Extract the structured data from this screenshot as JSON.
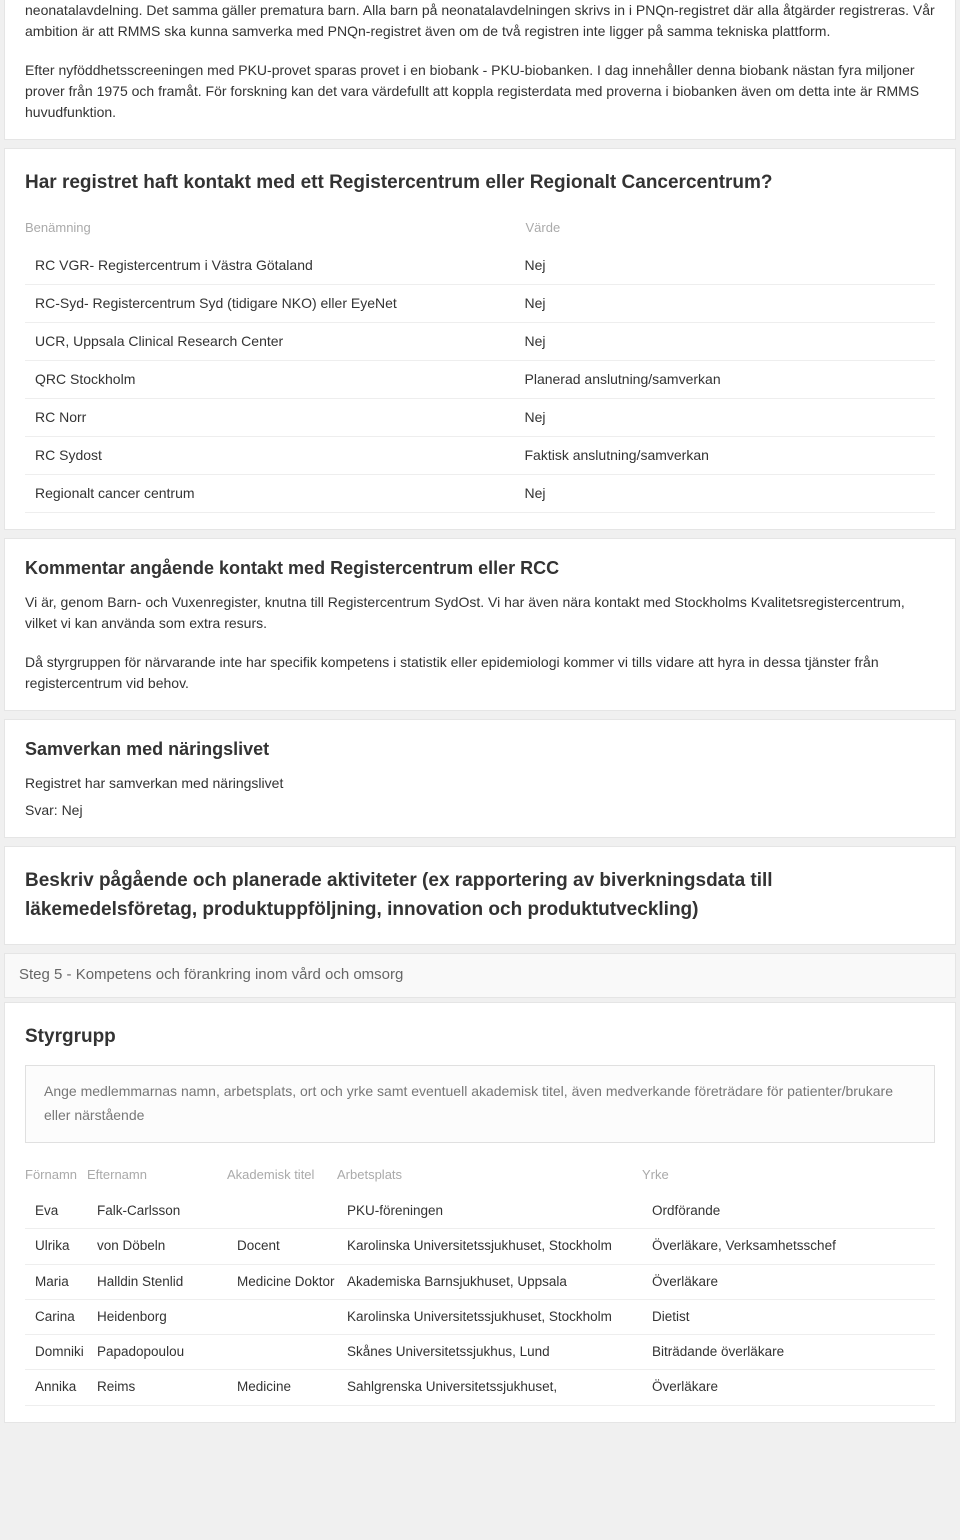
{
  "intro": {
    "p1": "neonatalavdelning. Det samma gäller prematura barn. Alla barn på neonatalavdelningen skrivs in i PNQn-registret där alla åtgärder registreras. Vår ambition är att RMMS ska kunna samverka med PNQn-registret även om de två registren inte ligger på samma tekniska plattform.",
    "p2": "Efter nyföddhetsscreeningen med PKU-provet sparas provet i en biobank - PKU-biobanken. I dag innehåller denna biobank nästan fyra miljoner prover från 1975 och framåt. För forskning kan det vara värdefullt att koppla registerdata med proverna i biobanken även om detta inte är RMMS huvudfunktion."
  },
  "contact_section": {
    "title": "Har registret haft kontakt med ett Registercentrum eller Regionalt Cancercentrum?",
    "col_name": "Benämning",
    "col_value": "Värde",
    "rows": [
      {
        "name": "RC VGR- Registercentrum i Västra Götaland",
        "value": "Nej"
      },
      {
        "name": "RC-Syd- Registercentrum Syd (tidigare NKO) eller EyeNet",
        "value": "Nej"
      },
      {
        "name": "UCR, Uppsala Clinical Research Center",
        "value": "Nej"
      },
      {
        "name": "QRC Stockholm",
        "value": "Planerad anslutning/samverkan"
      },
      {
        "name": "RC Norr",
        "value": "Nej"
      },
      {
        "name": "RC Sydost",
        "value": "Faktisk anslutning/samverkan"
      },
      {
        "name": "Regionalt cancer centrum",
        "value": "Nej"
      }
    ]
  },
  "comment_section": {
    "title": "Kommentar angående kontakt med Registercentrum eller RCC",
    "p1": "Vi är, genom Barn- och Vuxenregister, knutna till Registercentrum SydOst. Vi har även nära kontakt med Stockholms Kvalitetsregistercentrum, vilket vi kan använda som extra resurs.",
    "p2": "Då styrgruppen för närvarande inte har specifik kompetens i statistik eller epidemiologi kommer vi tills vidare att hyra in dessa tjänster från registercentrum vid behov."
  },
  "industry_section": {
    "title": "Samverkan med näringslivet",
    "line": "Registret har samverkan med näringslivet",
    "answer": "Svar: Nej"
  },
  "activities_section": {
    "title": "Beskriv pågående och planerade aktiviteter (ex rapportering av biverkningsdata till läkemedelsföretag, produktuppföljning, innovation och produktutveckling)"
  },
  "step5": {
    "label": "Steg 5 - Kompetens och förankring inom vård och omsorg"
  },
  "steering": {
    "title": "Styrgrupp",
    "info": "Ange medlemmarnas namn, arbetsplats, ort och yrke samt eventuell akademisk titel, även medverkande företrädare för patienter/brukare eller närstående",
    "cols": {
      "c1": "Förnamn",
      "c2": "Efternamn",
      "c3": "Akademisk titel",
      "c4": "Arbetsplats",
      "c5": "Yrke"
    },
    "members": [
      {
        "first": "Eva",
        "last": "Falk-Carlsson",
        "title": "",
        "workplace": "PKU-föreningen",
        "role": "Ordförande"
      },
      {
        "first": "Ulrika",
        "last": "von Döbeln",
        "title": "Docent",
        "workplace": "Karolinska Universitetssjukhuset, Stockholm",
        "role": "Överläkare, Verksamhetsschef"
      },
      {
        "first": "Maria",
        "last": "Halldin Stenlid",
        "title": "Medicine Doktor",
        "workplace": "Akademiska Barnsjukhuset, Uppsala",
        "role": "Överläkare"
      },
      {
        "first": "Carina",
        "last": "Heidenborg",
        "title": "",
        "workplace": "Karolinska Universitetssjukhuset, Stockholm",
        "role": "Dietist"
      },
      {
        "first": "Domniki",
        "last": "Papadopoulou",
        "title": "",
        "workplace": "Skånes Universitetssjukhus, Lund",
        "role": "Biträdande överläkare"
      },
      {
        "first": "Annika",
        "last": "Reims",
        "title": "Medicine",
        "workplace": "Sahlgrenska Universitetssjukhuset,",
        "role": "Överläkare"
      }
    ]
  }
}
